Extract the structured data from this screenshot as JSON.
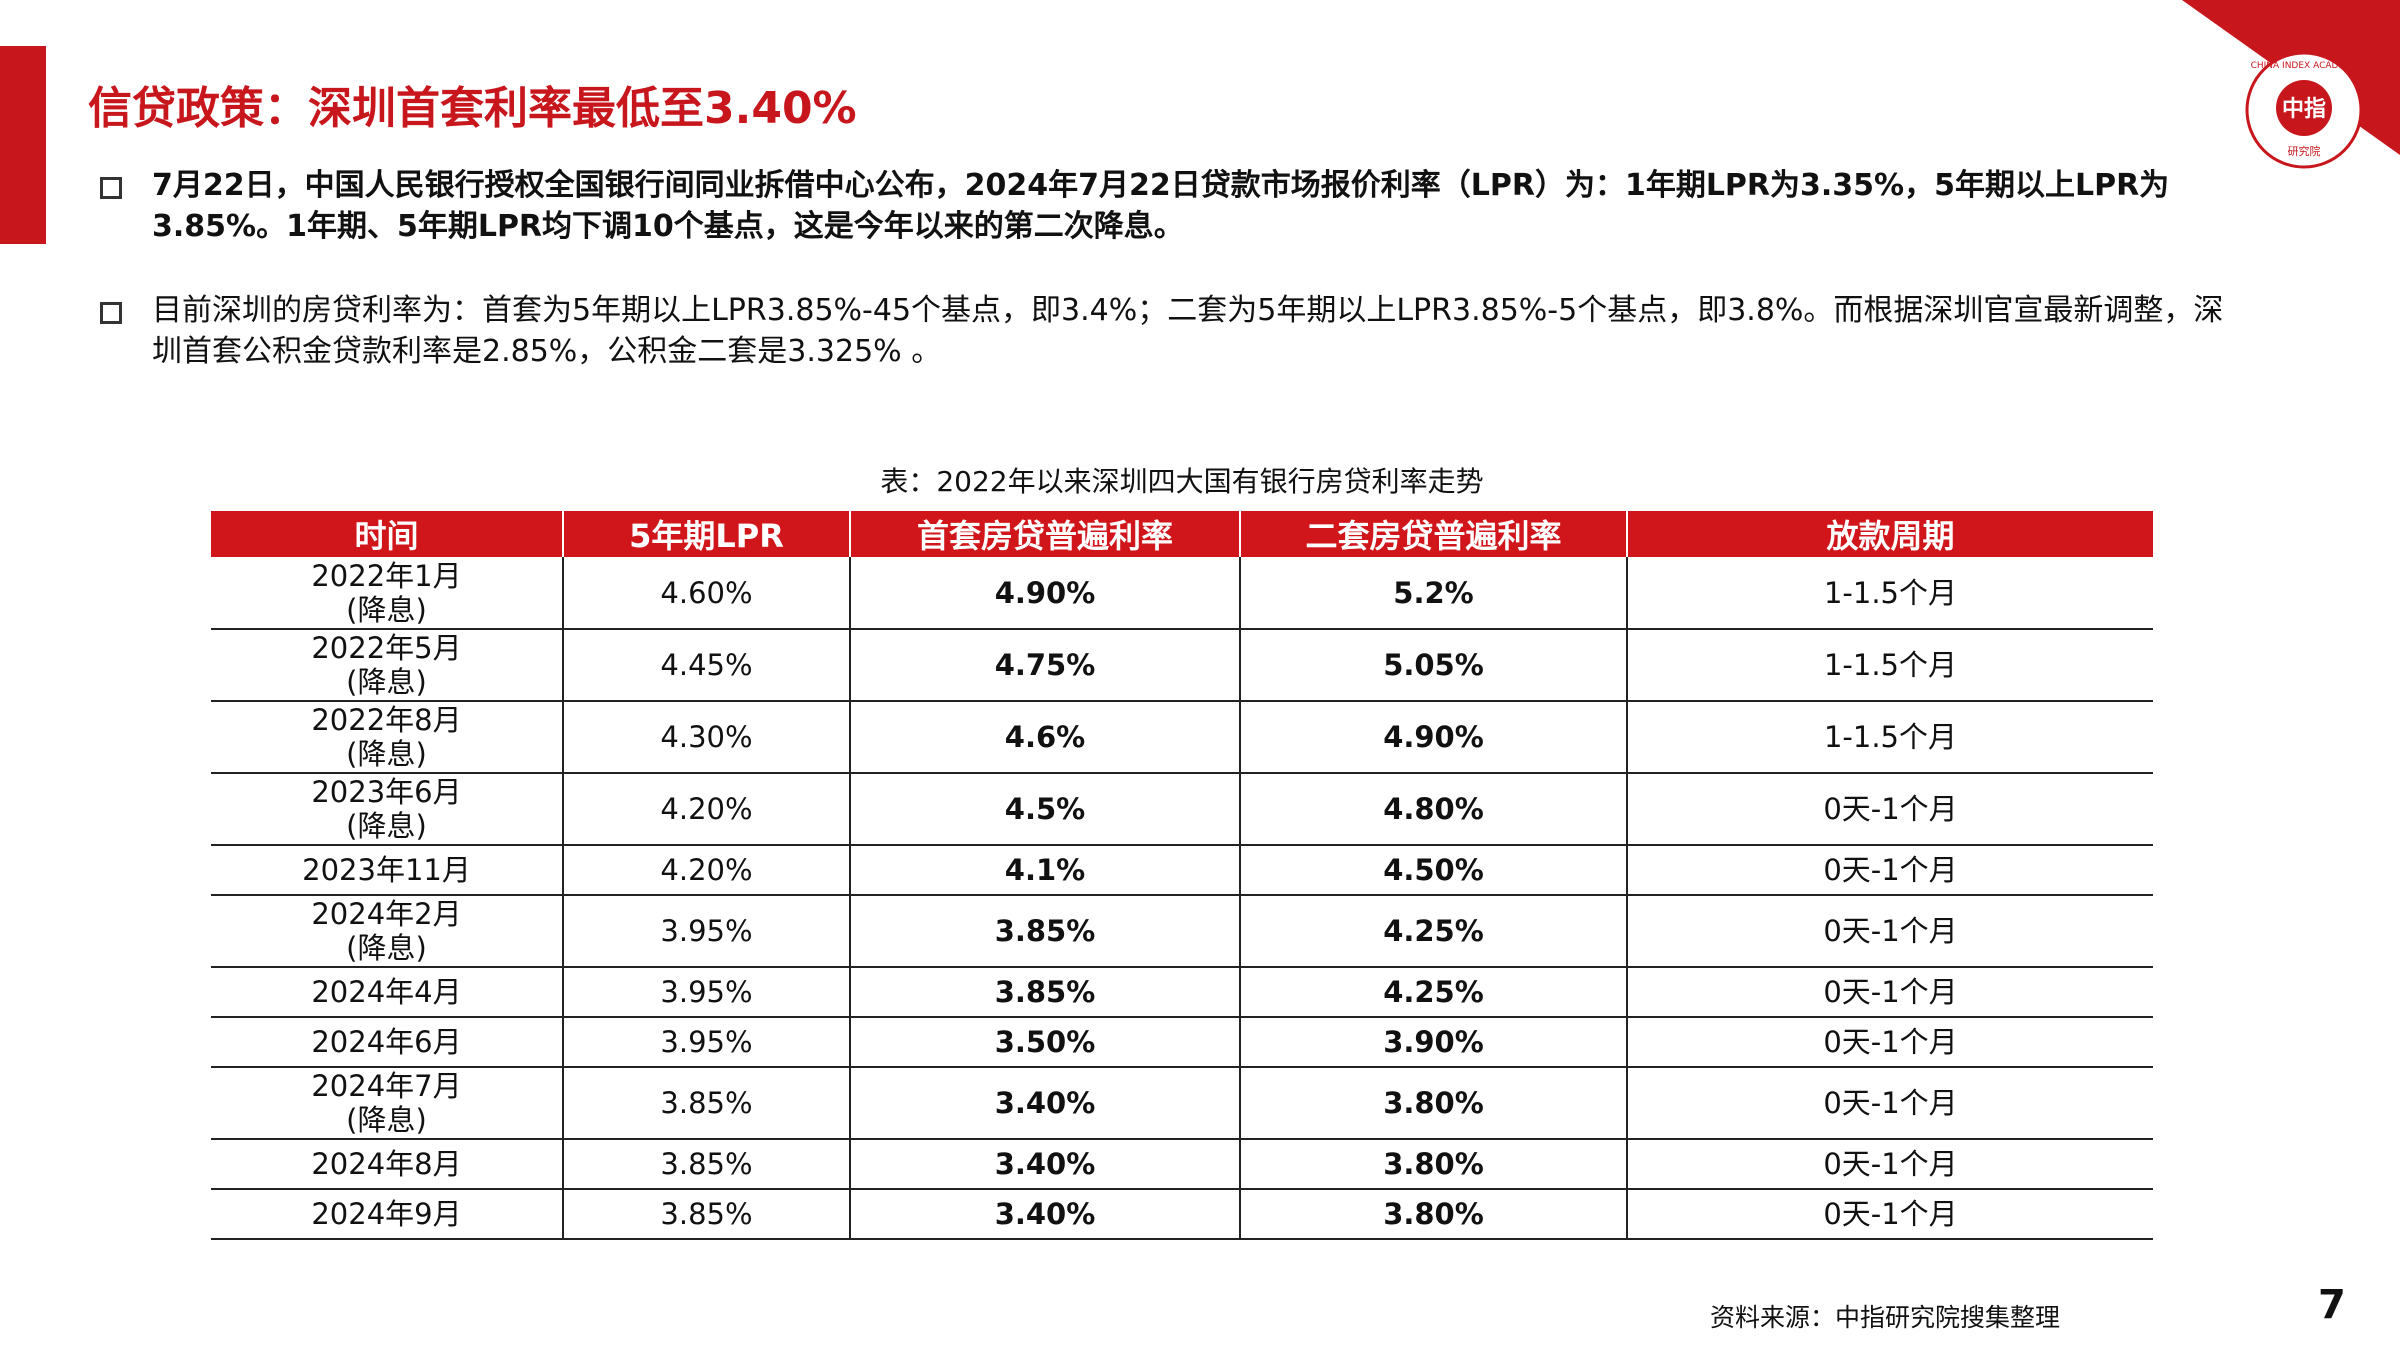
{
  "header": {
    "title": "信贷政策：深圳首套利率最低至3.40%"
  },
  "logo": {
    "name": "中指",
    "ring": "CHINA INDEX ACADEMY",
    "sub": "研究院"
  },
  "bullets": [
    "7月22日，中国人民银行授权全国银行间同业拆借中心公布，2024年7月22日贷款市场报价利率（LPR）为：1年期LPR为3.35%，5年期以上LPR为3.85%。1年期、5年期LPR均下调10个基点，这是今年以来的第二次降息。",
    "目前深圳的房贷利率为：首套为5年期以上LPR3.85%-45个基点，即3.4%；二套为5年期以上LPR3.85%-5个基点，即3.8%。而根据深圳官宣最新调整，深圳首套公积金贷款利率是2.85%，公积金二套是3.325% 。"
  ],
  "table": {
    "caption": "表：2022年以来深圳四大国有银行房贷利率走势",
    "columns": [
      "时间",
      "5年期LPR",
      "首套房贷普遍利率",
      "二套房贷普遍利率",
      "放款周期"
    ],
    "rows": [
      [
        "2022年1月\n(降息)",
        "4.60%",
        "4.90%",
        "5.2%",
        "1-1.5个月"
      ],
      [
        "2022年5月\n(降息)",
        "4.45%",
        "4.75%",
        "5.05%",
        "1-1.5个月"
      ],
      [
        "2022年8月\n(降息)",
        "4.30%",
        "4.6%",
        "4.90%",
        "1-1.5个月"
      ],
      [
        "2023年6月\n(降息)",
        "4.20%",
        "4.5%",
        "4.80%",
        "0天-1个月"
      ],
      [
        "2023年11月",
        "4.20%",
        "4.1%",
        "4.50%",
        "0天-1个月"
      ],
      [
        "2024年2月\n(降息)",
        "3.95%",
        "3.85%",
        "4.25%",
        "0天-1个月"
      ],
      [
        "2024年4月",
        "3.95%",
        "3.85%",
        "4.25%",
        "0天-1个月"
      ],
      [
        "2024年6月",
        "3.95%",
        "3.50%",
        "3.90%",
        "0天-1个月"
      ],
      [
        "2024年7月\n(降息)",
        "3.85%",
        "3.40%",
        "3.80%",
        "0天-1个月"
      ],
      [
        "2024年8月",
        "3.85%",
        "3.40%",
        "3.80%",
        "0天-1个月"
      ],
      [
        "2024年9月",
        "3.85%",
        "3.40%",
        "3.80%",
        "0天-1个月"
      ]
    ]
  },
  "source": "资料来源：中指研究院搜集整理",
  "page_number": "7"
}
